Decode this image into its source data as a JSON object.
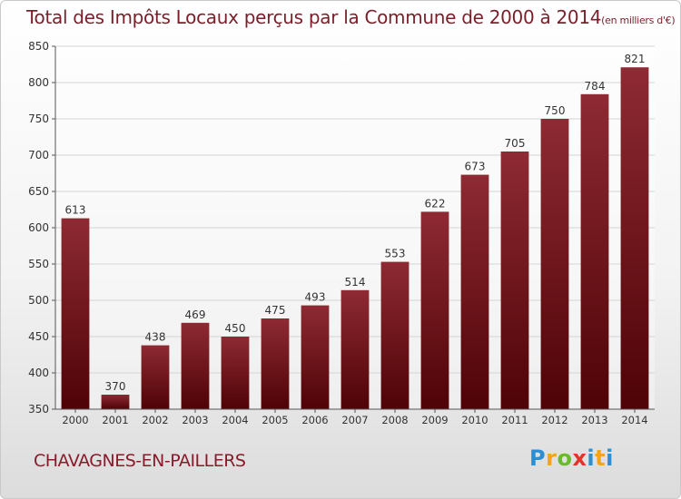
{
  "chart_data": {
    "type": "bar",
    "title": "Total des Impôts Locaux perçus par la Commune de 2000 à 2014",
    "unit_label": "(en milliers d'€)",
    "categories": [
      "2000",
      "2001",
      "2002",
      "2003",
      "2004",
      "2005",
      "2006",
      "2007",
      "2008",
      "2009",
      "2010",
      "2011",
      "2012",
      "2013",
      "2014"
    ],
    "values": [
      613,
      370,
      438,
      469,
      450,
      475,
      493,
      514,
      553,
      622,
      673,
      705,
      750,
      784,
      821
    ],
    "ylim": [
      350,
      850
    ],
    "yticks": [
      350,
      400,
      450,
      500,
      550,
      600,
      650,
      700,
      750,
      800,
      850
    ],
    "grid": true,
    "bar_color": "#7d1620",
    "xlabel": "",
    "ylabel": ""
  },
  "footer": {
    "commune": "CHAVAGNES-EN-PAILLERS",
    "logo": "Proxiti"
  }
}
